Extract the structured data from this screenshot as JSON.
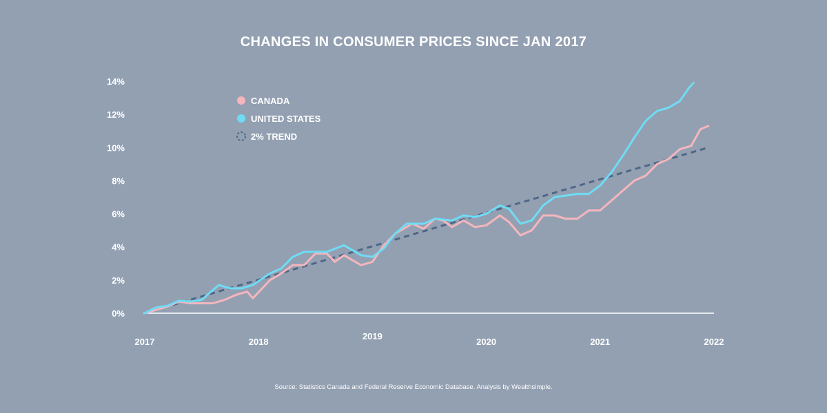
{
  "chart_data": {
    "type": "line",
    "title": "CHANGES IN CONSUMER PRICES SINCE JAN 2017",
    "xlabel": "",
    "ylabel": "",
    "ylim": [
      0,
      14
    ],
    "xlim": [
      2017,
      2022
    ],
    "y_ticks": [
      0,
      2,
      4,
      6,
      8,
      10,
      12,
      14
    ],
    "y_tick_labels": [
      "0%",
      "2%",
      "4%",
      "6%",
      "8%",
      "10%",
      "12%",
      "14%"
    ],
    "x_ticks": [
      2017,
      2018,
      2019,
      2020,
      2021,
      2022
    ],
    "x_tick_labels": [
      "2017",
      "2018",
      "2019",
      "2020",
      "2021",
      "2022"
    ],
    "legend": {
      "placement": "top-left"
    },
    "series": [
      {
        "name": "CANADA",
        "color": "#f4b6bd",
        "style": "solid",
        "points": [
          [
            2017.0,
            0.0
          ],
          [
            2017.1,
            0.2
          ],
          [
            2017.2,
            0.4
          ],
          [
            2017.3,
            0.7
          ],
          [
            2017.4,
            0.6
          ],
          [
            2017.5,
            0.6
          ],
          [
            2017.6,
            0.6
          ],
          [
            2017.7,
            0.8
          ],
          [
            2017.8,
            1.1
          ],
          [
            2017.9,
            1.3
          ],
          [
            2017.95,
            0.9
          ],
          [
            2018.1,
            2.0
          ],
          [
            2018.2,
            2.4
          ],
          [
            2018.3,
            2.9
          ],
          [
            2018.4,
            2.9
          ],
          [
            2018.5,
            3.6
          ],
          [
            2018.6,
            3.6
          ],
          [
            2018.67,
            3.1
          ],
          [
            2018.75,
            3.5
          ],
          [
            2018.9,
            2.9
          ],
          [
            2019.0,
            3.1
          ],
          [
            2019.1,
            4.1
          ],
          [
            2019.2,
            4.8
          ],
          [
            2019.35,
            5.4
          ],
          [
            2019.45,
            5.1
          ],
          [
            2019.55,
            5.7
          ],
          [
            2019.62,
            5.6
          ],
          [
            2019.7,
            5.2
          ],
          [
            2019.8,
            5.6
          ],
          [
            2019.9,
            5.2
          ],
          [
            2020.0,
            5.3
          ],
          [
            2020.12,
            5.9
          ],
          [
            2020.2,
            5.5
          ],
          [
            2020.3,
            4.7
          ],
          [
            2020.4,
            5.0
          ],
          [
            2020.5,
            5.9
          ],
          [
            2020.6,
            5.9
          ],
          [
            2020.7,
            5.7
          ],
          [
            2020.8,
            5.7
          ],
          [
            2020.9,
            6.2
          ],
          [
            2021.0,
            6.2
          ],
          [
            2021.1,
            6.8
          ],
          [
            2021.2,
            7.4
          ],
          [
            2021.3,
            8.0
          ],
          [
            2021.4,
            8.3
          ],
          [
            2021.5,
            9.0
          ],
          [
            2021.6,
            9.3
          ],
          [
            2021.7,
            9.9
          ],
          [
            2021.8,
            10.1
          ],
          [
            2021.88,
            11.1
          ],
          [
            2021.95,
            11.3
          ]
        ]
      },
      {
        "name": "UNITED STATES",
        "color": "#6fdcf4",
        "style": "solid",
        "points": [
          [
            2017.0,
            0.0
          ],
          [
            2017.1,
            0.35
          ],
          [
            2017.2,
            0.45
          ],
          [
            2017.3,
            0.75
          ],
          [
            2017.4,
            0.7
          ],
          [
            2017.5,
            0.8
          ],
          [
            2017.6,
            1.4
          ],
          [
            2017.65,
            1.7
          ],
          [
            2017.75,
            1.5
          ],
          [
            2017.85,
            1.5
          ],
          [
            2017.95,
            1.7
          ],
          [
            2018.1,
            2.4
          ],
          [
            2018.2,
            2.7
          ],
          [
            2018.3,
            3.4
          ],
          [
            2018.4,
            3.7
          ],
          [
            2018.5,
            3.7
          ],
          [
            2018.6,
            3.7
          ],
          [
            2018.75,
            4.1
          ],
          [
            2018.9,
            3.5
          ],
          [
            2019.0,
            3.4
          ],
          [
            2019.1,
            3.9
          ],
          [
            2019.2,
            4.8
          ],
          [
            2019.3,
            5.4
          ],
          [
            2019.45,
            5.4
          ],
          [
            2019.55,
            5.7
          ],
          [
            2019.7,
            5.6
          ],
          [
            2019.8,
            5.9
          ],
          [
            2019.9,
            5.8
          ],
          [
            2020.0,
            6.0
          ],
          [
            2020.12,
            6.5
          ],
          [
            2020.2,
            6.3
          ],
          [
            2020.3,
            5.4
          ],
          [
            2020.4,
            5.6
          ],
          [
            2020.5,
            6.5
          ],
          [
            2020.6,
            7.0
          ],
          [
            2020.7,
            7.1
          ],
          [
            2020.8,
            7.2
          ],
          [
            2020.9,
            7.2
          ],
          [
            2021.0,
            7.7
          ],
          [
            2021.1,
            8.5
          ],
          [
            2021.2,
            9.5
          ],
          [
            2021.3,
            10.6
          ],
          [
            2021.4,
            11.6
          ],
          [
            2021.5,
            12.2
          ],
          [
            2021.6,
            12.4
          ],
          [
            2021.7,
            12.8
          ],
          [
            2021.78,
            13.6
          ],
          [
            2021.82,
            13.9
          ]
        ]
      },
      {
        "name": "2% TREND",
        "color": "#4f6786",
        "style": "dashed",
        "points": [
          [
            2017.0,
            0.0
          ],
          [
            2021.95,
            10.0
          ]
        ]
      }
    ],
    "source": "Source: Statistics Canada and Federal Reserve Economic Database. Analysis by Wealthsimple."
  }
}
